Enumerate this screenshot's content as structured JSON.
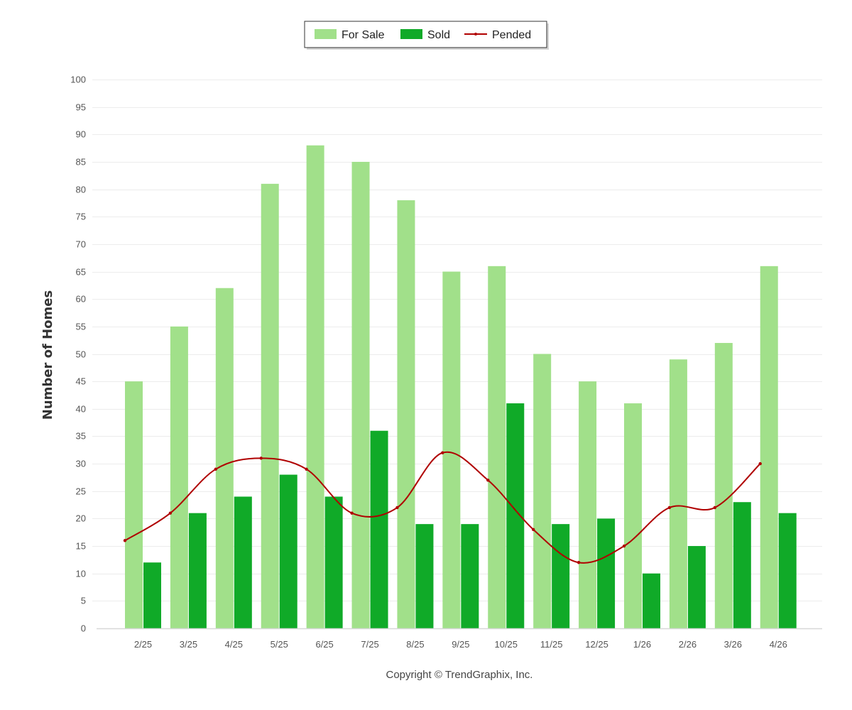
{
  "chart_data": {
    "type": "bar",
    "categories": [
      "2/25",
      "3/25",
      "4/25",
      "5/25",
      "6/25",
      "7/25",
      "8/25",
      "9/25",
      "10/25",
      "11/25",
      "12/25",
      "1/26",
      "2/26",
      "3/26",
      "4/26"
    ],
    "series": [
      {
        "name": "For Sale",
        "type": "bar",
        "color": "#a1e08a",
        "values": [
          45,
          55,
          62,
          81,
          88,
          85,
          78,
          65,
          66,
          50,
          45,
          41,
          49,
          52,
          66
        ]
      },
      {
        "name": "Sold",
        "type": "bar",
        "color": "#10aa28",
        "values": [
          12,
          21,
          24,
          28,
          24,
          36,
          19,
          19,
          41,
          19,
          20,
          10,
          15,
          23,
          21
        ]
      },
      {
        "name": "Pended",
        "type": "line",
        "color": "#b00000",
        "values": [
          16,
          21,
          29,
          31,
          29,
          21,
          22,
          32,
          27,
          18,
          12,
          15,
          22,
          22,
          30
        ]
      }
    ],
    "title": "",
    "xlabel": "",
    "ylabel": "Number of Homes",
    "ylim": [
      0,
      100
    ],
    "yticks": [
      0,
      5,
      10,
      15,
      20,
      25,
      30,
      35,
      40,
      45,
      50,
      55,
      60,
      65,
      70,
      75,
      80,
      85,
      90,
      95,
      100
    ],
    "grid": true,
    "legend_position": "top-center",
    "line_smooth": true
  },
  "footer": {
    "copyright": "Copyright © TrendGraphix, Inc."
  }
}
